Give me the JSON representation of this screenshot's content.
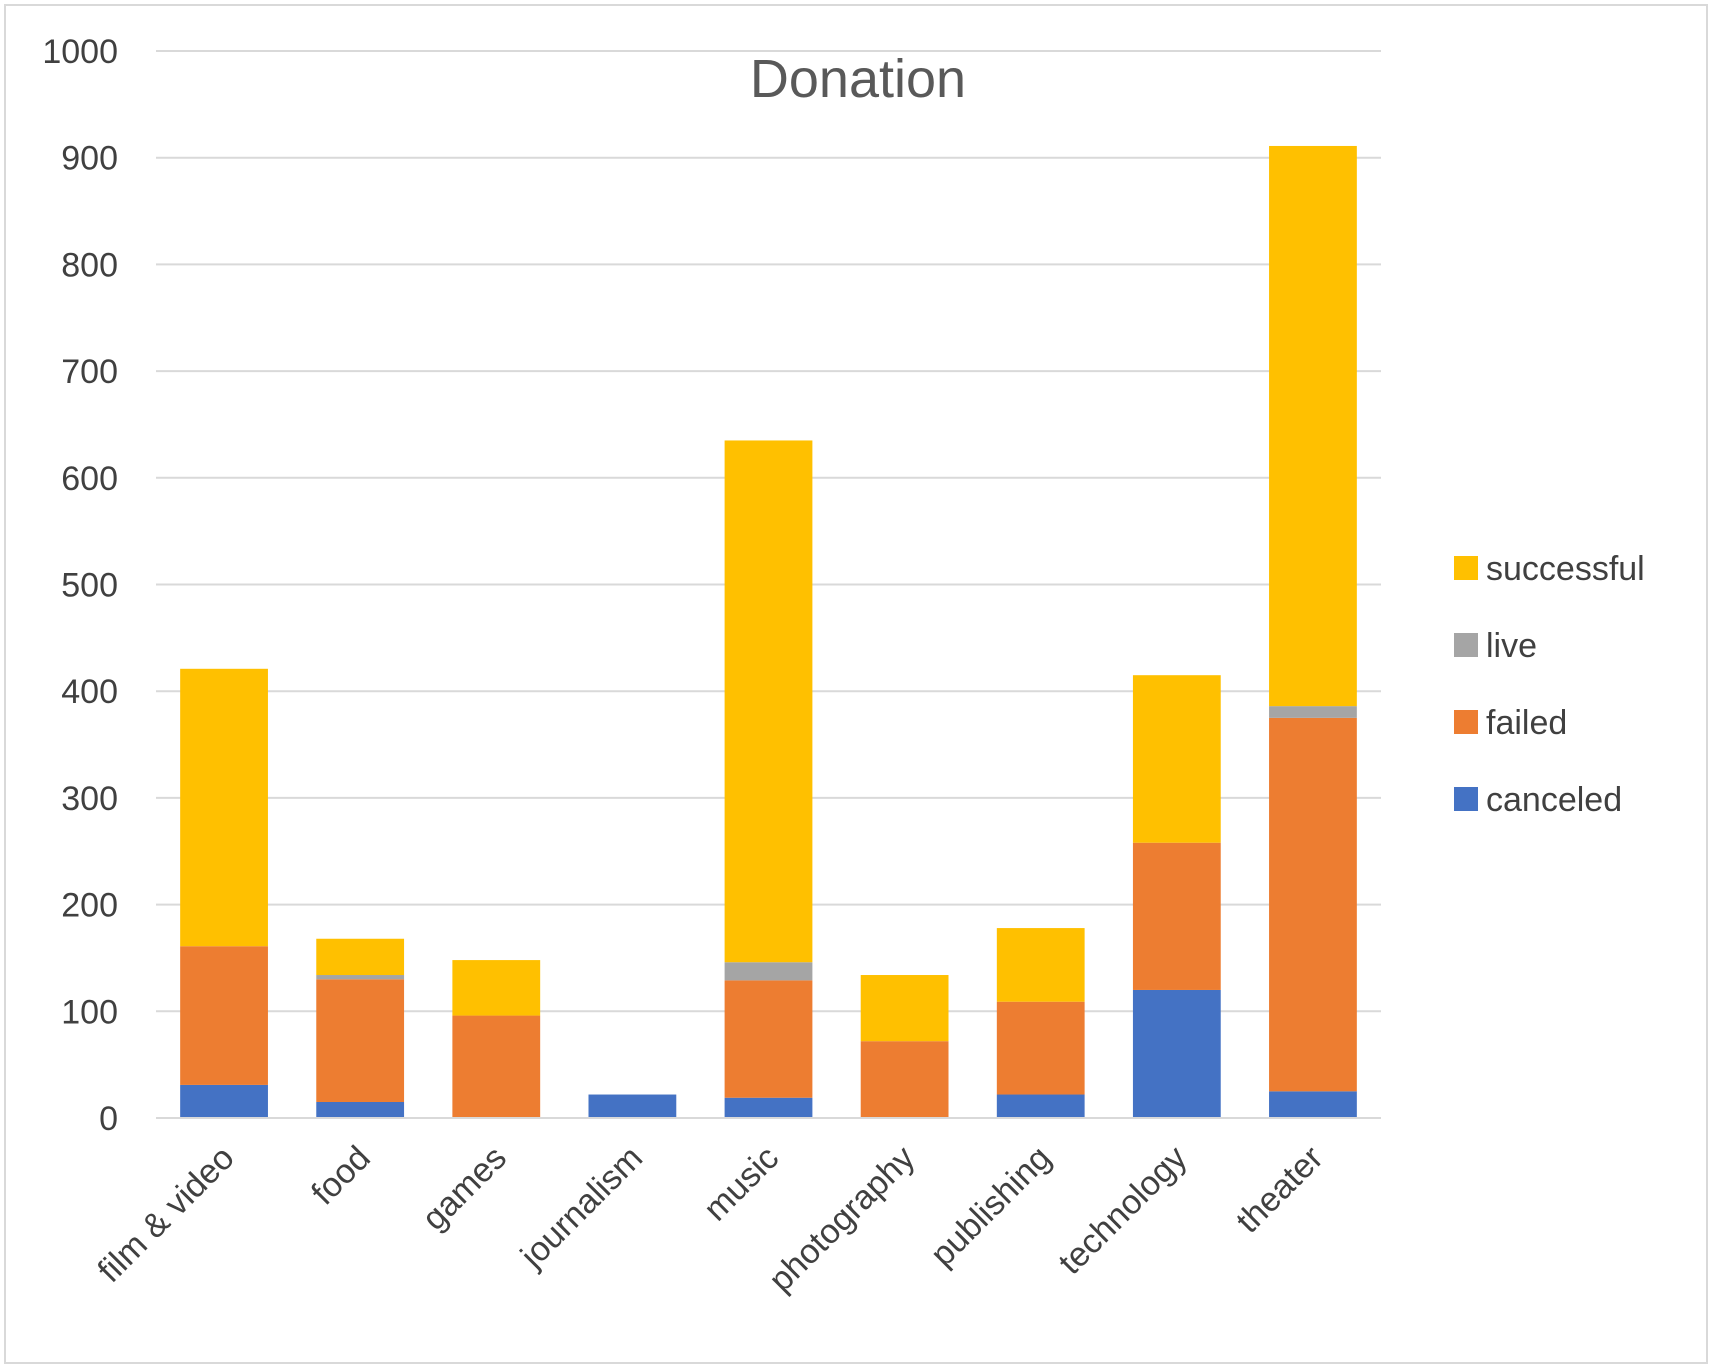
{
  "chart_data": {
    "type": "bar",
    "stacked": true,
    "title": "Donation",
    "xlabel": "",
    "ylabel": "",
    "ylim": [
      0,
      1000
    ],
    "yticks": [
      "0",
      "100",
      "200",
      "300",
      "400",
      "500",
      "600",
      "700",
      "800",
      "900",
      "1000"
    ],
    "grid": true,
    "legend_position": "right",
    "categories": [
      "film & video",
      "food",
      "games",
      "journalism",
      "music",
      "photography",
      "publishing",
      "technology",
      "theater"
    ],
    "series": [
      {
        "name": "canceled",
        "color": "#4472c4",
        "values": [
          31,
          15,
          0,
          22,
          19,
          0,
          22,
          120,
          25
        ]
      },
      {
        "name": "failed",
        "color": "#ed7d31",
        "values": [
          130,
          115,
          96,
          0,
          110,
          72,
          87,
          138,
          350
        ]
      },
      {
        "name": "live",
        "color": "#a5a5a5",
        "values": [
          0,
          4,
          0,
          0,
          17,
          0,
          0,
          0,
          11
        ]
      },
      {
        "name": "successful",
        "color": "#ffc000",
        "values": [
          260,
          34,
          52,
          0,
          489,
          62,
          69,
          157,
          525
        ]
      }
    ]
  }
}
